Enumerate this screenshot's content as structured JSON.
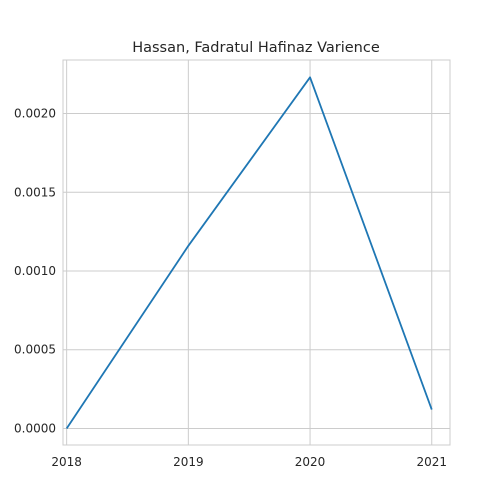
{
  "chart_data": {
    "type": "line",
    "title": "Hassan, Fadratul Hafinaz Varience",
    "xlabel": "",
    "ylabel": "",
    "x": [
      "2018",
      "2019",
      "2020",
      "2021"
    ],
    "series": [
      {
        "values": [
          0.0,
          0.00116,
          0.00223,
          0.00012
        ]
      }
    ],
    "xlim": [
      2017.97,
      2021.15
    ],
    "ylim": [
      -0.000105,
      0.00234
    ],
    "xticks": [
      "2018",
      "2019",
      "2020",
      "2021"
    ],
    "yticks": [
      "0.0000",
      "0.0005",
      "0.0010",
      "0.0015",
      "0.0020"
    ],
    "ytick_values": [
      0.0,
      0.0005,
      0.001,
      0.0015,
      0.002
    ],
    "grid": true,
    "legend": "none",
    "colors": {
      "line": "#1f77b4",
      "grid": "#cccccc",
      "spine": "#cccccc",
      "text": "#262626"
    }
  }
}
